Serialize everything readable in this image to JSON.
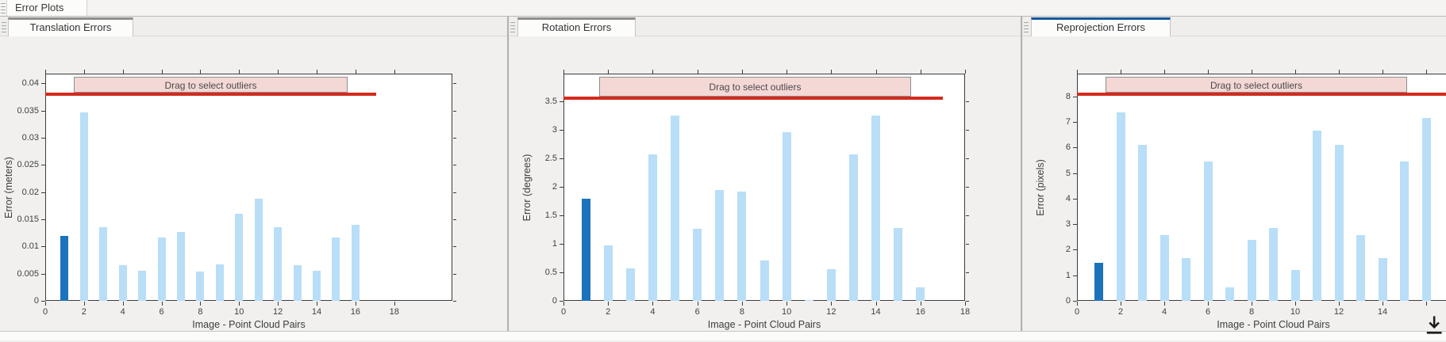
{
  "window": {
    "top_tab_label": "Error Plots"
  },
  "banner_label": "Drag to select outliers",
  "colors": {
    "bar": "#b9def7",
    "bar_selected": "#1b74bb",
    "threshold_line": "#d42a1e",
    "banner_fill": "#f4d8d6",
    "active_tab_accent": "#12579f",
    "inactive_tab_accent": "#908e8b"
  },
  "chart_data": [
    {
      "type": "bar",
      "title": "Translation Errors",
      "tab_active": false,
      "xlabel": "Image - Point Cloud Pairs",
      "ylabel": "Error (meters)",
      "x": [
        1,
        2,
        3,
        4,
        5,
        6,
        7,
        8,
        9,
        10,
        11,
        12,
        13,
        14,
        15,
        16
      ],
      "values": [
        0.012,
        0.0347,
        0.0135,
        0.0066,
        0.0055,
        0.0117,
        0.0126,
        0.0054,
        0.0067,
        0.016,
        0.0188,
        0.0135,
        0.0066,
        0.0055,
        0.0117,
        0.014
      ],
      "selected_bar": 1,
      "xlim": [
        0,
        21
      ],
      "ylim": [
        0,
        0.0418
      ],
      "xtick_values": [
        0,
        2,
        4,
        6,
        8,
        10,
        12,
        14,
        16,
        18
      ],
      "xtick_labels": [
        "0",
        "2",
        "4",
        "6",
        "8",
        "10",
        "12",
        "14",
        "16",
        "18"
      ],
      "ytick_values": [
        0,
        0.005,
        0.01,
        0.015,
        0.02,
        0.025,
        0.03,
        0.035,
        0.04
      ],
      "ytick_labels": [
        "0",
        "0.005",
        "0.01",
        "0.015",
        "0.02",
        "0.025",
        "0.03",
        "0.035",
        "0.04"
      ],
      "threshold": 0.038,
      "threshold_span": [
        0,
        17.05
      ],
      "banner_span": [
        1.47,
        15.6
      ],
      "legend": "none",
      "grid": "off"
    },
    {
      "type": "bar",
      "title": "Rotation Errors",
      "tab_active": false,
      "xlabel": "Image - Point Cloud Pairs",
      "ylabel": "Error (degrees)",
      "x": [
        1,
        2,
        3,
        4,
        5,
        6,
        7,
        8,
        9,
        10,
        11,
        12,
        13,
        14,
        15,
        16
      ],
      "values": [
        1.8,
        0.98,
        0.57,
        2.57,
        3.25,
        1.26,
        1.95,
        1.92,
        0.71,
        2.96,
        0.02,
        0.56,
        2.57,
        3.25,
        1.28,
        0.24
      ],
      "selected_bar": 1,
      "xlim": [
        0,
        18
      ],
      "ylim": [
        0,
        3.99
      ],
      "xtick_values": [
        0,
        2,
        4,
        6,
        8,
        10,
        12,
        14,
        16,
        18
      ],
      "xtick_labels": [
        "0",
        "2",
        "4",
        "6",
        "8",
        "10",
        "12",
        "14",
        "16",
        "18"
      ],
      "ytick_values": [
        0,
        0.5,
        1,
        1.5,
        2,
        2.5,
        3,
        3.5
      ],
      "ytick_labels": [
        "0",
        "0.5",
        "1",
        "1.5",
        "2",
        "2.5",
        "3",
        "3.5"
      ],
      "threshold": 3.56,
      "threshold_span": [
        0,
        17
      ],
      "banner_span": [
        1.6,
        15.58
      ],
      "legend": "none",
      "grid": "off"
    },
    {
      "type": "bar",
      "title": "Reprojection Errors",
      "tab_active": true,
      "xlabel": "Image - Point Cloud Pairs",
      "ylabel": "Error (pixels)",
      "x": [
        1,
        2,
        3,
        4,
        5,
        6,
        7,
        8,
        9,
        10,
        11,
        12,
        13,
        14,
        15,
        16
      ],
      "values": [
        1.5,
        7.37,
        6.1,
        2.57,
        1.67,
        5.45,
        0.53,
        2.38,
        2.85,
        1.2,
        6.67,
        6.1,
        2.57,
        1.67,
        5.45,
        7.15
      ],
      "selected_bar": 1,
      "xlim": [
        0,
        18
      ],
      "ylim": [
        0,
        8.89
      ],
      "xtick_values": [
        0,
        2,
        4,
        6,
        8,
        10,
        12,
        14,
        16
      ],
      "xtick_labels": [
        "0",
        "2",
        "4",
        "6",
        "8",
        "10",
        "12",
        "14",
        ""
      ],
      "ytick_values": [
        0,
        1,
        2,
        3,
        4,
        5,
        6,
        7,
        8
      ],
      "ytick_labels": [
        "0",
        "1",
        "2",
        "3",
        "4",
        "5",
        "6",
        "7",
        "8"
      ],
      "threshold": 8.08,
      "threshold_span": [
        0,
        18
      ],
      "banner_span": [
        1.31,
        15.13
      ],
      "legend": "none",
      "grid": "off"
    }
  ]
}
